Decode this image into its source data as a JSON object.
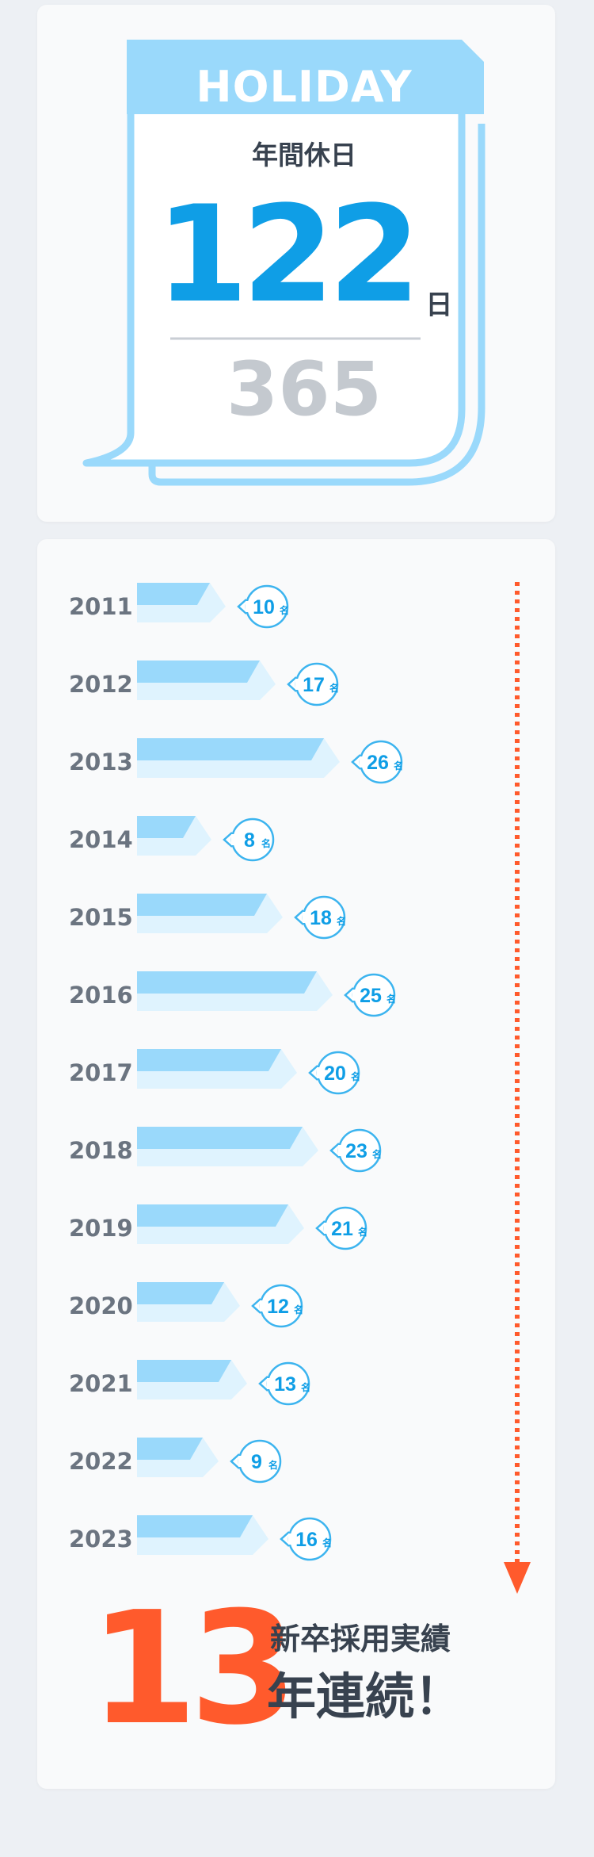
{
  "holiday": {
    "header": "HOLIDAY",
    "subtitle": "年間休日",
    "days": "122",
    "days_unit": "日",
    "total": "365",
    "colors": {
      "accent": "#0f9ee6",
      "calendar": "#9ad9fb",
      "total": "#c4c9cf"
    }
  },
  "chart_data": {
    "type": "bar",
    "categories": [
      "2011",
      "2012",
      "2013",
      "2014",
      "2015",
      "2016",
      "2017",
      "2018",
      "2019",
      "2020",
      "2021",
      "2022",
      "2023"
    ],
    "values": [
      10,
      17,
      26,
      8,
      18,
      25,
      20,
      23,
      21,
      12,
      13,
      9,
      16
    ],
    "value_unit": "名",
    "orientation": "horizontal",
    "colors": {
      "bar_top": "#9ad9fb",
      "bar_bottom": "#dff3fe",
      "bubble": "#3cb4ef",
      "arrow": "#ff5a2c"
    }
  },
  "streak": {
    "number": "13",
    "line1": "新卒採用実績",
    "line2": "年連続！"
  }
}
